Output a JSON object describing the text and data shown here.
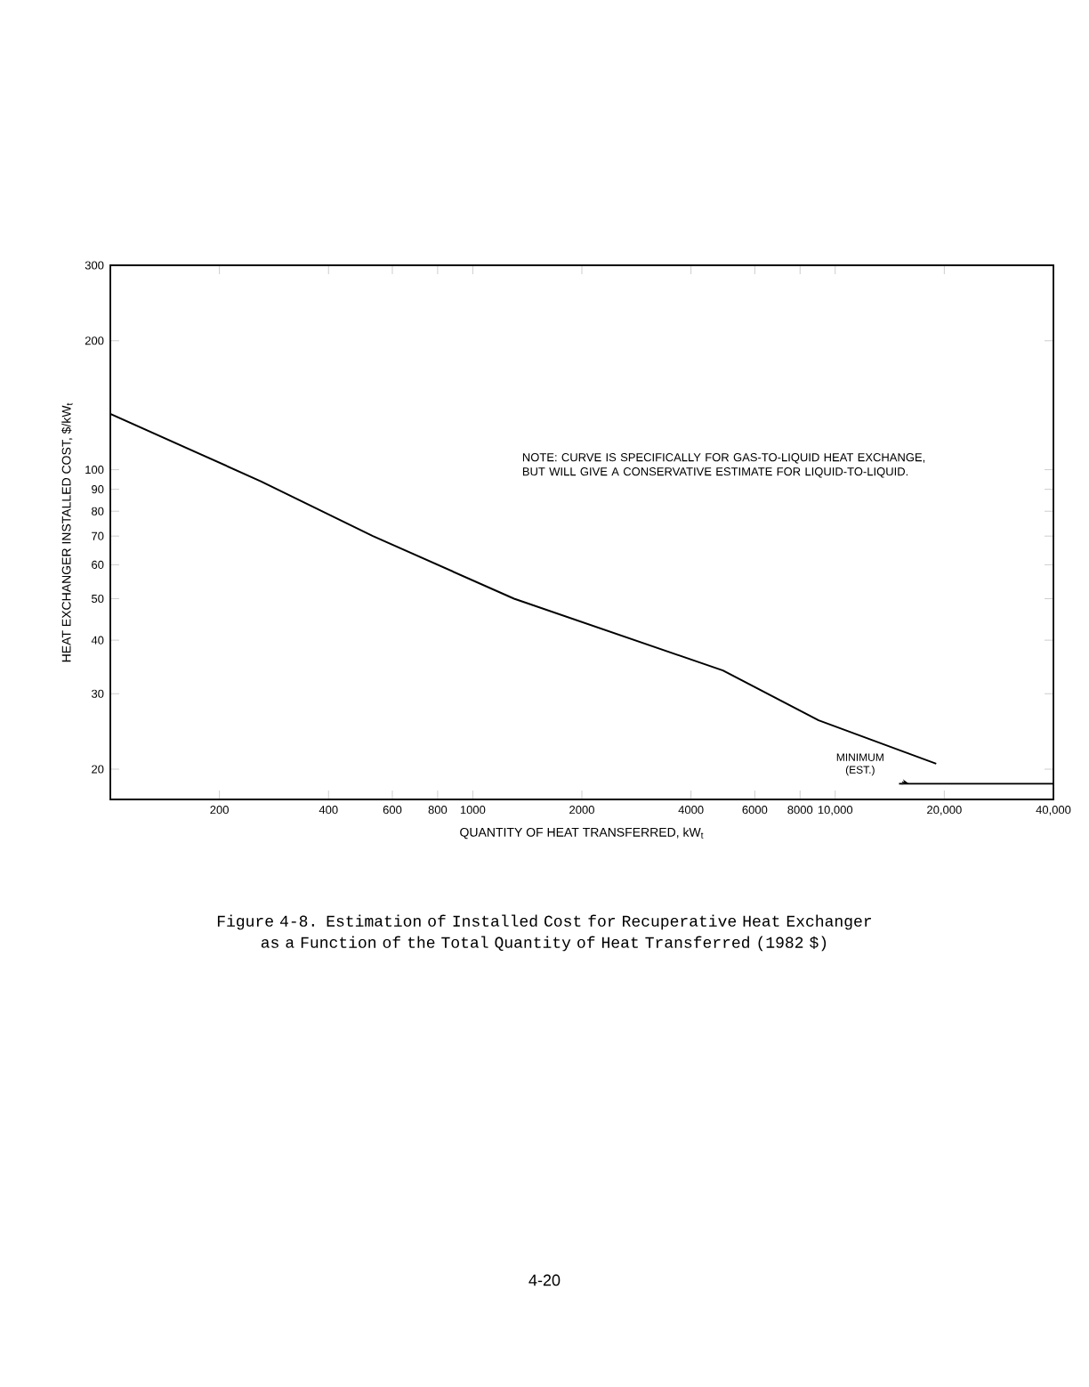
{
  "chart_data": {
    "type": "line",
    "xlabel": "QUANTITY OF HEAT TRANSFERRED, kW$_{t}$",
    "ylabel": "HEAT EXCHANGER INSTALLED COST, $/kW$_{t}$",
    "log": "xy",
    "xlim": [
      100,
      40000
    ],
    "ylim": [
      17,
      300
    ],
    "xticks": [
      200,
      400,
      600,
      800,
      1000,
      2000,
      4000,
      6000,
      8000,
      {
        "value": 10000,
        "label": "10,000"
      },
      {
        "value": 20000,
        "label": "20,000"
      },
      {
        "value": 40000,
        "label": "40,000"
      }
    ],
    "yticks": [
      20,
      30,
      40,
      50,
      60,
      70,
      80,
      90,
      100,
      200,
      300
    ],
    "series": [
      {
        "color": "#000000",
        "x": [
          100,
          260,
          530,
          1300,
          4900,
          9000,
          19000
        ],
        "values": [
          135,
          94,
          70,
          50,
          34,
          26,
          20.6
        ]
      },
      {
        "color": "#000000",
        "x": [
          15000,
          40000
        ],
        "values": [
          18.5,
          18.5
        ]
      }
    ],
    "annotations": [
      "NOTE:  CURVE IS SPECIFICALLY FOR GAS-TO-LIQUID HEAT EXCHANGE, BUT WILL GIVE A CONSERVATIVE ESTIMATE FOR LIQUID-TO-LIQUID.",
      {
        "text": "MINIMUM (EST.)",
        "x": 16000,
        "y": 18.5
      },
      "Figure 4-8.  Estimation of Installed Cost for Recuperative Heat Exchanger as a Function of the Total Quantity of Heat Transferred (1982 $)",
      "4-20"
    ]
  }
}
